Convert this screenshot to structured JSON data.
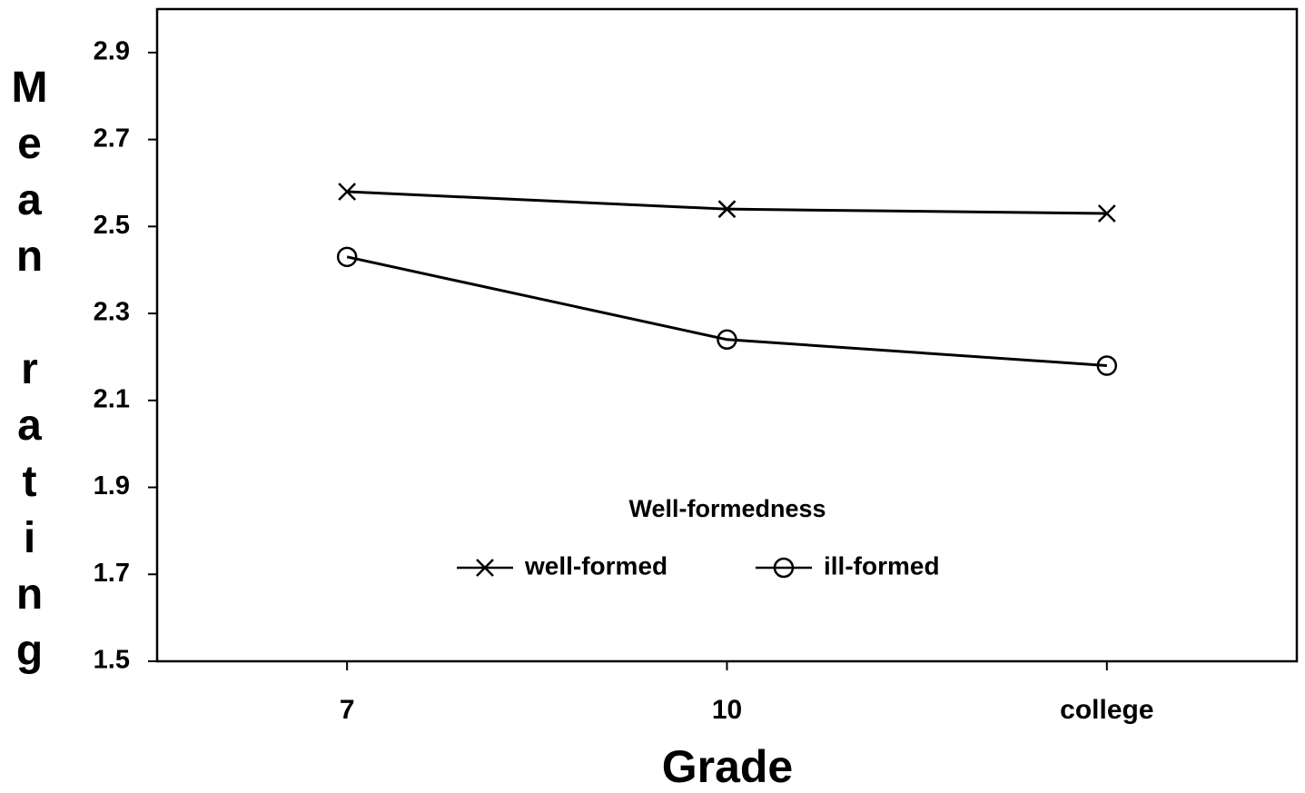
{
  "chart_data": {
    "type": "line",
    "x_label": "Grade",
    "y_label": "Mean rating",
    "categories": [
      "7",
      "10",
      "college"
    ],
    "series": [
      {
        "name": "well-formed",
        "color": "#000000",
        "marker": "x",
        "values": [
          2.58,
          2.54,
          2.53
        ]
      },
      {
        "name": "ill-formed",
        "color": "#000000",
        "marker": "circle",
        "values": [
          2.43,
          2.24,
          2.18
        ]
      }
    ],
    "ylim": [
      1.5,
      3.0
    ],
    "yticks": [
      1.5,
      1.7,
      1.9,
      2.1,
      2.3,
      2.5,
      2.7,
      2.9
    ],
    "grid": false,
    "legend_title": "Well-formedness",
    "legend_position": "bottom"
  }
}
